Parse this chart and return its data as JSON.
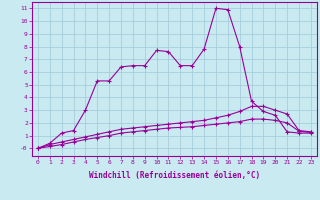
{
  "xlabel": "Windchill (Refroidissement éolien,°C)",
  "x": [
    0,
    1,
    2,
    3,
    4,
    5,
    6,
    7,
    8,
    9,
    10,
    11,
    12,
    13,
    14,
    15,
    16,
    17,
    18,
    19,
    20,
    21,
    22,
    23
  ],
  "line1": [
    0,
    0.4,
    1.2,
    1.4,
    3.0,
    5.3,
    5.3,
    6.4,
    6.5,
    6.5,
    7.7,
    7.6,
    6.5,
    6.5,
    7.8,
    11.0,
    10.9,
    8.0,
    3.7,
    2.9,
    2.6,
    1.3,
    1.2,
    1.2
  ],
  "line2": [
    0,
    0.3,
    0.5,
    0.7,
    0.9,
    1.1,
    1.3,
    1.5,
    1.6,
    1.7,
    1.8,
    1.9,
    2.0,
    2.1,
    2.2,
    2.4,
    2.6,
    2.9,
    3.3,
    3.3,
    3.0,
    2.7,
    1.4,
    1.3
  ],
  "line3": [
    0,
    0.15,
    0.3,
    0.5,
    0.7,
    0.85,
    1.0,
    1.2,
    1.3,
    1.4,
    1.5,
    1.6,
    1.65,
    1.7,
    1.8,
    1.9,
    2.0,
    2.1,
    2.3,
    2.3,
    2.2,
    2.0,
    1.35,
    1.25
  ],
  "line_color": "#990099",
  "bg_color": "#c8eaf0",
  "grid_color": "#a0c8d8",
  "ylim": [
    -0.6,
    11.5
  ],
  "xlim": [
    -0.5,
    23.5
  ],
  "yticks": [
    0,
    1,
    2,
    3,
    4,
    5,
    6,
    7,
    8,
    9,
    10,
    11
  ],
  "ytick_labels": [
    "-0",
    "1",
    "2",
    "3",
    "4",
    "5",
    "6",
    "7",
    "8",
    "9",
    "10",
    "11"
  ],
  "xticks": [
    0,
    1,
    2,
    3,
    4,
    5,
    6,
    7,
    8,
    9,
    10,
    11,
    12,
    13,
    14,
    15,
    16,
    17,
    18,
    19,
    20,
    21,
    22,
    23
  ]
}
